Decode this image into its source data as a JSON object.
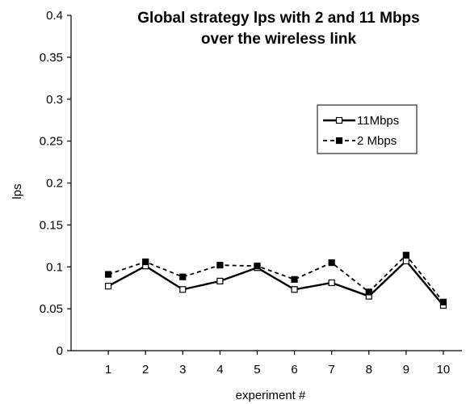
{
  "chart_data": {
    "type": "line",
    "title_lines": [
      "Global strategy lps with 2 and 11 Mbps",
      "over the wireless link"
    ],
    "xlabel": "experiment #",
    "ylabel": "lps",
    "categories": [
      "1",
      "2",
      "3",
      "4",
      "5",
      "6",
      "7",
      "8",
      "9",
      "10"
    ],
    "ylim": [
      0,
      0.4
    ],
    "yticks": [
      "0",
      "0.05",
      "0.1",
      "0.15",
      "0.2",
      "0.25",
      "0.3",
      "0.35",
      "0.4"
    ],
    "grid": false,
    "legend_position": "top-right",
    "series": [
      {
        "name": "11Mbps",
        "line_style": "solid",
        "marker": "hollow-square",
        "color": "#000000",
        "values": [
          0.077,
          0.101,
          0.073,
          0.083,
          0.099,
          0.073,
          0.081,
          0.065,
          0.107,
          0.054
        ]
      },
      {
        "name": "2 Mbps",
        "line_style": "dashed",
        "marker": "filled-square",
        "color": "#000000",
        "values": [
          0.091,
          0.106,
          0.088,
          0.102,
          0.101,
          0.085,
          0.105,
          0.07,
          0.114,
          0.058
        ]
      }
    ]
  }
}
